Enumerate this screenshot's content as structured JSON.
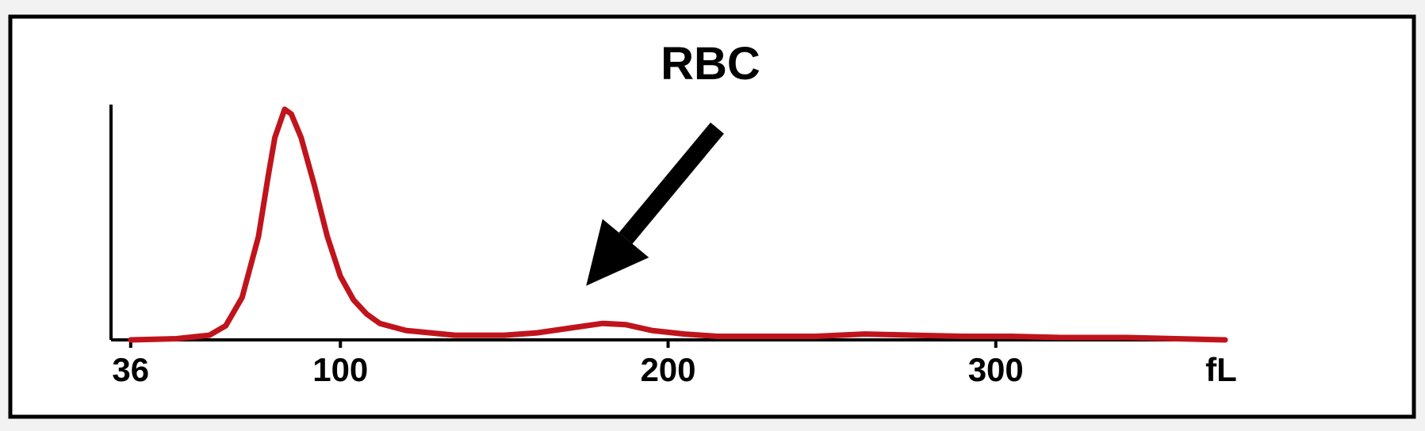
{
  "chart_data": {
    "type": "line",
    "title": "RBC",
    "xlabel": "",
    "ylabel": "",
    "x_ticks": [
      {
        "value": 36,
        "label": "36"
      },
      {
        "value": 100,
        "label": "100"
      },
      {
        "value": 200,
        "label": "200"
      },
      {
        "value": 300,
        "label": "300"
      }
    ],
    "x_unit_label": "fL",
    "xlim": [
      30,
      370
    ],
    "ylim": [
      0,
      100
    ],
    "grid": false,
    "line_color": "#c0141c",
    "annotation_color": "#000000",
    "annotation": {
      "type": "arrow",
      "tail": [
        215,
        90
      ],
      "head": [
        175,
        23
      ]
    },
    "series": [
      {
        "points": [
          [
            36,
            0
          ],
          [
            50,
            0.5
          ],
          [
            60,
            2
          ],
          [
            65,
            6
          ],
          [
            70,
            18
          ],
          [
            75,
            44
          ],
          [
            78,
            70
          ],
          [
            80,
            86
          ],
          [
            83,
            98
          ],
          [
            85,
            96
          ],
          [
            88,
            86
          ],
          [
            92,
            66
          ],
          [
            96,
            44
          ],
          [
            100,
            27
          ],
          [
            104,
            17
          ],
          [
            108,
            11
          ],
          [
            112,
            7
          ],
          [
            120,
            4
          ],
          [
            135,
            2
          ],
          [
            150,
            2
          ],
          [
            160,
            3
          ],
          [
            170,
            5
          ],
          [
            180,
            7
          ],
          [
            187,
            6.5
          ],
          [
            195,
            4
          ],
          [
            205,
            2.5
          ],
          [
            215,
            1.5
          ],
          [
            230,
            1.5
          ],
          [
            245,
            1.5
          ],
          [
            260,
            2.5
          ],
          [
            275,
            2
          ],
          [
            290,
            1.5
          ],
          [
            305,
            1.5
          ],
          [
            320,
            1
          ],
          [
            340,
            1
          ],
          [
            355,
            0.5
          ],
          [
            370,
            0
          ]
        ]
      }
    ]
  }
}
